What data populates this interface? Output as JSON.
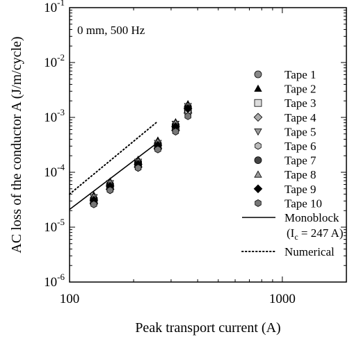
{
  "chart_data": {
    "type": "scatter",
    "annotation": "0 mm, 500 Hz",
    "xlabel": "Peak transport current (A)",
    "ylabel": "AC loss of the conductor A (J/m/cycle)",
    "x_scale": "log",
    "y_scale": "log",
    "xlim": [
      100,
      2000
    ],
    "ylim": [
      1e-06,
      0.1
    ],
    "grid": false,
    "legend_position": "right",
    "x_ticks": [
      {
        "value": 100,
        "label": "100"
      },
      {
        "value": 1000,
        "label": "1000"
      }
    ],
    "y_ticks": [
      {
        "value": 1e-06,
        "base": "10",
        "exp": "-6"
      },
      {
        "value": 1e-05,
        "base": "10",
        "exp": "-5"
      },
      {
        "value": 0.0001,
        "base": "10",
        "exp": "-4"
      },
      {
        "value": 0.001,
        "base": "10",
        "exp": "-3"
      },
      {
        "value": 0.01,
        "base": "10",
        "exp": "-2"
      },
      {
        "value": 0.1,
        "base": "10",
        "exp": "-1"
      }
    ],
    "series": [
      {
        "name": "Tape 1",
        "marker": "circle",
        "fill": "#888888",
        "x": [
          130,
          155,
          210,
          260,
          315,
          360
        ],
        "y": [
          3.3e-05,
          6e-05,
          0.00015,
          0.00033,
          0.00073,
          0.00155
        ]
      },
      {
        "name": "Tape 2",
        "marker": "triangle-up",
        "fill": "#000000",
        "x": [
          130,
          155,
          210,
          260,
          315,
          360
        ],
        "y": [
          3.8e-05,
          6.8e-05,
          0.00017,
          0.00038,
          0.00082,
          0.00175
        ]
      },
      {
        "name": "Tape 3",
        "marker": "square",
        "fill": "#dddddd",
        "x": [
          130,
          155,
          210,
          260,
          315,
          360
        ],
        "y": [
          3e-05,
          5.5e-05,
          0.00014,
          0.0003,
          0.00066,
          0.0014
        ]
      },
      {
        "name": "Tape 4",
        "marker": "diamond",
        "fill": "#aaaaaa",
        "x": [
          130,
          155,
          210,
          260,
          315,
          360
        ],
        "y": [
          2.7e-05,
          4.9e-05,
          0.000125,
          0.00027,
          0.00058,
          0.0012
        ]
      },
      {
        "name": "Tape 5",
        "marker": "triangle-down",
        "fill": "#999999",
        "x": [
          130,
          155,
          210,
          260,
          315,
          360
        ],
        "y": [
          3.5e-05,
          6.3e-05,
          0.000155,
          0.00034,
          0.00076,
          0.0016
        ]
      },
      {
        "name": "Tape 6",
        "marker": "hexagon",
        "fill": "#bbbbbb",
        "x": [
          130,
          155,
          210,
          260,
          315,
          360
        ],
        "y": [
          2.8e-05,
          5.2e-05,
          0.00013,
          0.00028,
          0.00062,
          0.0013
        ]
      },
      {
        "name": "Tape 7",
        "marker": "circle",
        "fill": "#444444",
        "x": [
          130,
          155,
          210,
          260,
          315,
          360
        ],
        "y": [
          3.2e-05,
          5.8e-05,
          0.000145,
          0.00032,
          0.0007,
          0.0015
        ]
      },
      {
        "name": "Tape 8",
        "marker": "triangle-up",
        "fill": "#999999",
        "x": [
          130,
          155,
          210,
          260,
          315,
          360
        ],
        "y": [
          3.6e-05,
          6.5e-05,
          0.00016,
          0.00036,
          0.00079,
          0.00165
        ]
      },
      {
        "name": "Tape 9",
        "marker": "diamond",
        "fill": "#000000",
        "x": [
          130,
          155,
          210,
          260,
          315,
          360
        ],
        "y": [
          3.1e-05,
          5.6e-05,
          0.00014,
          0.00031,
          0.00068,
          0.00145
        ]
      },
      {
        "name": "Tape 10",
        "marker": "hexagon",
        "fill": "#777777",
        "x": [
          130,
          155,
          210,
          260,
          315,
          360
        ],
        "y": [
          2.6e-05,
          4.7e-05,
          0.00012,
          0.00026,
          0.00055,
          0.00105
        ]
      }
    ],
    "lines": [
      {
        "name": "Monoblock",
        "style": "solid",
        "x": [
          100,
          260
        ],
        "y": [
          2.1e-05,
          0.00035
        ]
      },
      {
        "name": "Numerical",
        "style": "dotted",
        "x": [
          100,
          260
        ],
        "y": [
          4e-05,
          0.00085
        ]
      }
    ],
    "monoblock_note": {
      "prefix": "(I",
      "sub": "c",
      "suffix": " = 247 A)"
    }
  }
}
